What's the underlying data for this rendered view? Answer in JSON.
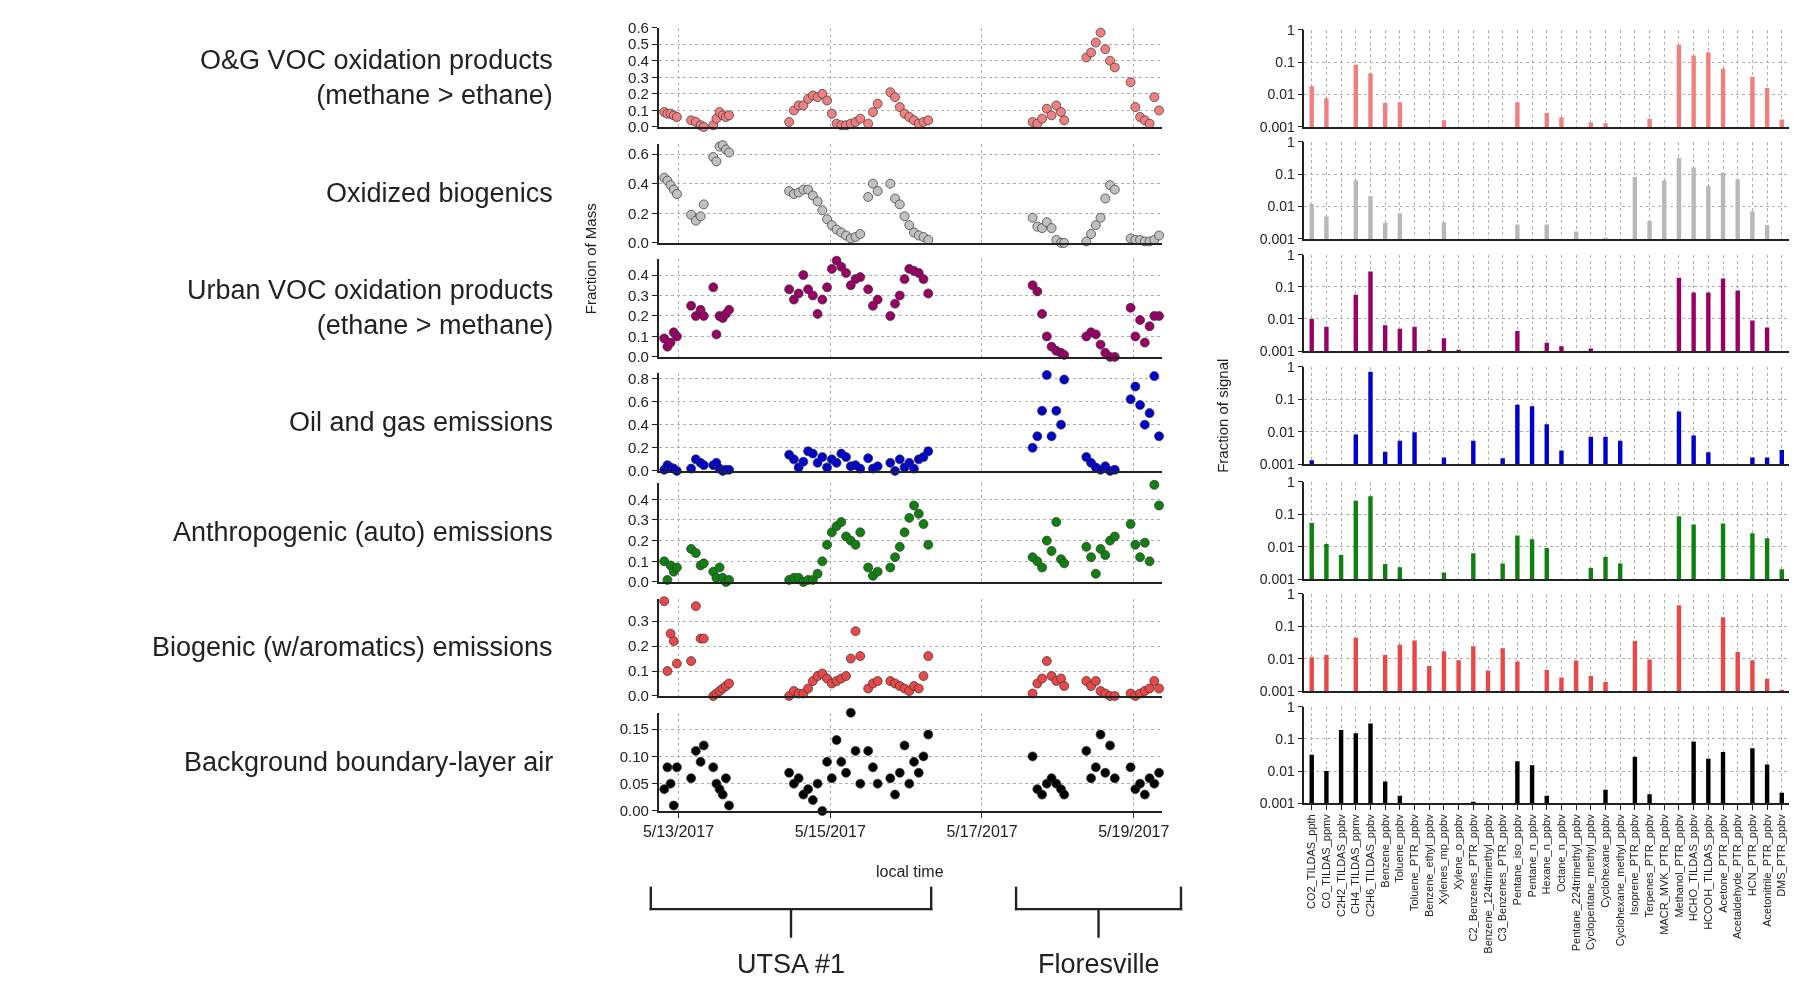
{
  "chart_data": [
    {
      "type": "scatter",
      "title": "O&G VOC oxidation products\n(methane > ethane)",
      "color": "#f08080",
      "marker": "circle",
      "grid": true,
      "tick_labels": "y",
      "x": [
        "2017-05-12T19:30",
        "2017-05-12T20:30",
        "2017-05-12T21:30",
        "2017-05-12T22:30",
        "2017-05-12T23:30",
        "2017-05-13T04:00",
        "2017-05-13T05:30",
        "2017-05-13T07:00",
        "2017-05-13T08:00",
        "2017-05-13T11:00",
        "2017-05-13T12:00",
        "2017-05-13T13:00",
        "2017-05-13T14:00",
        "2017-05-13T15:00",
        "2017-05-13T16:00",
        "2017-05-14T11:00",
        "2017-05-14T12:30",
        "2017-05-14T14:00",
        "2017-05-14T15:30",
        "2017-05-14T17:00",
        "2017-05-14T18:30",
        "2017-05-14T20:00",
        "2017-05-14T21:30",
        "2017-05-14T23:00",
        "2017-05-15T00:30",
        "2017-05-15T02:00",
        "2017-05-15T03:30",
        "2017-05-15T05:00",
        "2017-05-15T06:30",
        "2017-05-15T08:00",
        "2017-05-15T09:30",
        "2017-05-15T12:00",
        "2017-05-15T13:30",
        "2017-05-15T15:00",
        "2017-05-15T19:00",
        "2017-05-15T20:30",
        "2017-05-15T22:00",
        "2017-05-15T23:30",
        "2017-05-16T01:00",
        "2017-05-16T02:30",
        "2017-05-16T04:00",
        "2017-05-16T05:30",
        "2017-05-16T07:00",
        "2017-05-17T16:00",
        "2017-05-17T17:30",
        "2017-05-17T19:00",
        "2017-05-17T20:30",
        "2017-05-17T22:00",
        "2017-05-17T23:30",
        "2017-05-18T01:00",
        "2017-05-18T02:00",
        "2017-05-18T09:00",
        "2017-05-18T10:30",
        "2017-05-18T12:00",
        "2017-05-18T13:30",
        "2017-05-18T15:00",
        "2017-05-18T16:30",
        "2017-05-18T18:00",
        "2017-05-18T23:00",
        "2017-05-19T00:30",
        "2017-05-19T02:00",
        "2017-05-19T03:30",
        "2017-05-19T05:00",
        "2017-05-19T06:30",
        "2017-05-19T08:00"
      ],
      "values": [
        0.09,
        0.08,
        0.08,
        0.07,
        0.06,
        0.04,
        0.03,
        0.01,
        0.0,
        0.01,
        0.05,
        0.09,
        0.07,
        0.06,
        0.07,
        0.03,
        0.1,
        0.13,
        0.13,
        0.17,
        0.19,
        0.18,
        0.2,
        0.16,
        0.08,
        0.02,
        0.01,
        0.01,
        0.02,
        0.03,
        0.05,
        0.02,
        0.09,
        0.14,
        0.21,
        0.18,
        0.12,
        0.08,
        0.06,
        0.04,
        0.02,
        0.03,
        0.04,
        0.03,
        0.02,
        0.05,
        0.11,
        0.07,
        0.13,
        0.09,
        0.04,
        0.42,
        0.45,
        0.51,
        0.57,
        0.47,
        0.4,
        0.36,
        0.27,
        0.12,
        0.06,
        0.04,
        0.02,
        0.18,
        0.1
      ],
      "xlim": [
        "2017-05-12T17:45",
        "2017-05-19T09:00"
      ],
      "xticks": [
        {
          "value": "2017-05-13",
          "label": null
        },
        {
          "value": "2017-05-15",
          "label": null
        },
        {
          "value": "2017-05-17",
          "label": null
        },
        {
          "value": "2017-05-19",
          "label": null
        }
      ],
      "ylim": [
        0,
        0.6
      ],
      "yticks": [
        {
          "value": 0,
          "label": "0.0"
        },
        0.1,
        0.2,
        0.3,
        0.4,
        0.5,
        0.6
      ]
    },
    {
      "type": "scatter",
      "title": "Oxidized biogenics",
      "color": "#c0c0c0",
      "marker": "circle",
      "grid": true,
      "tick_labels": "y",
      "x": [
        "2017-05-12T19:30",
        "2017-05-12T20:30",
        "2017-05-12T21:30",
        "2017-05-12T22:30",
        "2017-05-12T23:30",
        "2017-05-13T04:00",
        "2017-05-13T05:30",
        "2017-05-13T07:00",
        "2017-05-13T08:00",
        "2017-05-13T11:00",
        "2017-05-13T12:00",
        "2017-05-13T13:00",
        "2017-05-13T14:00",
        "2017-05-13T15:00",
        "2017-05-13T16:00",
        "2017-05-14T11:00",
        "2017-05-14T12:30",
        "2017-05-14T14:00",
        "2017-05-14T15:30",
        "2017-05-14T17:00",
        "2017-05-14T18:30",
        "2017-05-14T20:00",
        "2017-05-14T21:30",
        "2017-05-14T23:00",
        "2017-05-15T00:30",
        "2017-05-15T02:00",
        "2017-05-15T03:30",
        "2017-05-15T05:00",
        "2017-05-15T06:30",
        "2017-05-15T08:00",
        "2017-05-15T09:30",
        "2017-05-15T12:00",
        "2017-05-15T13:30",
        "2017-05-15T15:00",
        "2017-05-15T19:00",
        "2017-05-15T20:30",
        "2017-05-15T22:00",
        "2017-05-15T23:30",
        "2017-05-16T01:00",
        "2017-05-16T02:30",
        "2017-05-16T04:00",
        "2017-05-16T05:30",
        "2017-05-16T07:00",
        "2017-05-17T16:00",
        "2017-05-17T17:30",
        "2017-05-17T19:00",
        "2017-05-17T20:30",
        "2017-05-17T22:00",
        "2017-05-17T23:30",
        "2017-05-18T01:00",
        "2017-05-18T02:00",
        "2017-05-18T09:00",
        "2017-05-18T10:30",
        "2017-05-18T12:00",
        "2017-05-18T13:30",
        "2017-05-18T15:00",
        "2017-05-18T16:30",
        "2017-05-18T18:00",
        "2017-05-18T23:00",
        "2017-05-19T00:30",
        "2017-05-19T02:00",
        "2017-05-19T03:30",
        "2017-05-19T05:00",
        "2017-05-19T06:30",
        "2017-05-19T08:00"
      ],
      "values": [
        0.44,
        0.42,
        0.39,
        0.36,
        0.33,
        0.19,
        0.15,
        0.18,
        0.26,
        0.58,
        0.55,
        0.65,
        0.66,
        0.63,
        0.61,
        0.35,
        0.33,
        0.34,
        0.36,
        0.36,
        0.32,
        0.28,
        0.22,
        0.16,
        0.12,
        0.09,
        0.07,
        0.05,
        0.03,
        0.04,
        0.06,
        0.31,
        0.4,
        0.35,
        0.4,
        0.3,
        0.26,
        0.18,
        0.12,
        0.07,
        0.05,
        0.04,
        0.02,
        0.17,
        0.11,
        0.1,
        0.14,
        0.1,
        0.02,
        0.0,
        0.0,
        0.01,
        0.06,
        0.12,
        0.17,
        0.3,
        0.39,
        0.36,
        0.03,
        0.02,
        0.02,
        0.01,
        0.01,
        0.02,
        0.05
      ],
      "xlim": [
        "2017-05-12T17:45",
        "2017-05-19T09:00"
      ],
      "xticks": [
        {
          "value": "2017-05-13",
          "label": null
        },
        {
          "value": "2017-05-15",
          "label": null
        },
        {
          "value": "2017-05-17",
          "label": null
        },
        {
          "value": "2017-05-19",
          "label": null
        }
      ],
      "ylim": [
        0,
        0.67
      ],
      "yticks": [
        {
          "value": 0,
          "label": "0.0"
        },
        0.2,
        0.4,
        0.6
      ]
    },
    {
      "type": "scatter",
      "title": "Urban VOC oxidation products\n(ethane > methane)",
      "ylabel": "Fraction of Mass",
      "color": "#990066",
      "marker": "circle",
      "grid": true,
      "tick_labels": "y",
      "x": [
        "2017-05-12T19:30",
        "2017-05-12T20:30",
        "2017-05-12T21:30",
        "2017-05-12T22:30",
        "2017-05-12T23:30",
        "2017-05-13T04:00",
        "2017-05-13T05:30",
        "2017-05-13T07:00",
        "2017-05-13T08:00",
        "2017-05-13T11:00",
        "2017-05-13T12:00",
        "2017-05-13T13:00",
        "2017-05-13T14:00",
        "2017-05-13T15:00",
        "2017-05-13T16:00",
        "2017-05-14T11:00",
        "2017-05-14T12:30",
        "2017-05-14T14:00",
        "2017-05-14T15:30",
        "2017-05-14T17:00",
        "2017-05-14T18:30",
        "2017-05-14T20:00",
        "2017-05-14T21:30",
        "2017-05-14T23:00",
        "2017-05-15T00:30",
        "2017-05-15T02:00",
        "2017-05-15T03:30",
        "2017-05-15T05:00",
        "2017-05-15T06:30",
        "2017-05-15T08:00",
        "2017-05-15T09:30",
        "2017-05-15T12:00",
        "2017-05-15T13:30",
        "2017-05-15T15:00",
        "2017-05-15T19:00",
        "2017-05-15T20:30",
        "2017-05-15T22:00",
        "2017-05-15T23:30",
        "2017-05-16T01:00",
        "2017-05-16T02:30",
        "2017-05-16T04:00",
        "2017-05-16T05:30",
        "2017-05-16T07:00",
        "2017-05-17T16:00",
        "2017-05-17T17:30",
        "2017-05-17T19:00",
        "2017-05-17T20:30",
        "2017-05-17T22:00",
        "2017-05-17T23:30",
        "2017-05-18T01:00",
        "2017-05-18T02:00",
        "2017-05-18T09:00",
        "2017-05-18T10:30",
        "2017-05-18T12:00",
        "2017-05-18T13:30",
        "2017-05-18T15:00",
        "2017-05-18T16:30",
        "2017-05-18T18:00",
        "2017-05-18T23:00",
        "2017-05-19T00:30",
        "2017-05-19T02:00",
        "2017-05-19T03:30",
        "2017-05-19T05:00",
        "2017-05-19T06:30",
        "2017-05-19T08:00"
      ],
      "values": [
        0.09,
        0.05,
        0.07,
        0.12,
        0.1,
        0.25,
        0.2,
        0.23,
        0.2,
        0.34,
        0.11,
        0.2,
        0.19,
        0.21,
        0.23,
        0.33,
        0.28,
        0.31,
        0.4,
        0.33,
        0.3,
        0.21,
        0.28,
        0.34,
        0.43,
        0.47,
        0.44,
        0.41,
        0.35,
        0.38,
        0.39,
        0.33,
        0.25,
        0.28,
        0.2,
        0.26,
        0.3,
        0.38,
        0.43,
        0.42,
        0.41,
        0.38,
        0.31,
        0.35,
        0.32,
        0.21,
        0.1,
        0.05,
        0.03,
        0.02,
        0.01,
        0.1,
        0.12,
        0.11,
        0.06,
        0.02,
        0.0,
        0.0,
        0.24,
        0.1,
        0.18,
        0.07,
        0.15,
        0.2,
        0.2
      ],
      "xlim": [
        "2017-05-12T17:45",
        "2017-05-19T09:00"
      ],
      "xticks": [
        {
          "value": "2017-05-13",
          "label": null
        },
        {
          "value": "2017-05-15",
          "label": null
        },
        {
          "value": "2017-05-17",
          "label": null
        },
        {
          "value": "2017-05-19",
          "label": null
        }
      ],
      "ylim": [
        0,
        0.48
      ],
      "yticks": [
        {
          "value": 0,
          "label": "0.0"
        },
        0.1,
        0.2,
        0.3,
        0.4
      ]
    },
    {
      "type": "scatter",
      "title": "Oil and gas emissions",
      "color": "#0000cc",
      "marker": "circle",
      "grid": true,
      "tick_labels": "y",
      "x": [
        "2017-05-12T19:30",
        "2017-05-12T20:30",
        "2017-05-12T21:30",
        "2017-05-12T22:30",
        "2017-05-12T23:30",
        "2017-05-13T04:00",
        "2017-05-13T05:30",
        "2017-05-13T07:00",
        "2017-05-13T08:00",
        "2017-05-13T11:00",
        "2017-05-13T12:00",
        "2017-05-13T13:00",
        "2017-05-13T14:00",
        "2017-05-13T15:00",
        "2017-05-13T16:00",
        "2017-05-14T11:00",
        "2017-05-14T12:30",
        "2017-05-14T14:00",
        "2017-05-14T15:30",
        "2017-05-14T17:00",
        "2017-05-14T18:30",
        "2017-05-14T20:00",
        "2017-05-14T21:30",
        "2017-05-14T23:00",
        "2017-05-15T00:30",
        "2017-05-15T02:00",
        "2017-05-15T03:30",
        "2017-05-15T05:00",
        "2017-05-15T06:30",
        "2017-05-15T08:00",
        "2017-05-15T09:30",
        "2017-05-15T12:00",
        "2017-05-15T13:30",
        "2017-05-15T15:00",
        "2017-05-15T19:00",
        "2017-05-15T20:30",
        "2017-05-15T22:00",
        "2017-05-15T23:30",
        "2017-05-16T01:00",
        "2017-05-16T02:30",
        "2017-05-16T04:00",
        "2017-05-16T05:30",
        "2017-05-16T07:00",
        "2017-05-17T16:00",
        "2017-05-17T17:30",
        "2017-05-17T19:00",
        "2017-05-17T20:30",
        "2017-05-17T22:00",
        "2017-05-17T23:30",
        "2017-05-18T01:00",
        "2017-05-18T02:00",
        "2017-05-18T09:00",
        "2017-05-18T10:30",
        "2017-05-18T12:00",
        "2017-05-18T13:30",
        "2017-05-18T15:00",
        "2017-05-18T16:30",
        "2017-05-18T18:00",
        "2017-05-18T23:00",
        "2017-05-19T00:30",
        "2017-05-19T02:00",
        "2017-05-19T03:30",
        "2017-05-19T05:00",
        "2017-05-19T06:30",
        "2017-05-19T08:00"
      ],
      "values": [
        0.01,
        0.05,
        0.03,
        0.02,
        0.0,
        0.02,
        0.1,
        0.07,
        0.05,
        0.05,
        0.07,
        0.02,
        0.0,
        0.01,
        0.01,
        0.14,
        0.1,
        0.03,
        0.08,
        0.17,
        0.15,
        0.07,
        0.12,
        0.03,
        0.1,
        0.07,
        0.15,
        0.12,
        0.04,
        0.05,
        0.02,
        0.11,
        0.02,
        0.04,
        0.07,
        0.0,
        0.1,
        0.03,
        0.07,
        0.02,
        0.1,
        0.12,
        0.17,
        0.2,
        0.3,
        0.52,
        0.83,
        0.3,
        0.52,
        0.4,
        0.79,
        0.12,
        0.07,
        0.03,
        0.01,
        0.04,
        0.0,
        0.01,
        0.62,
        0.73,
        0.57,
        0.4,
        0.5,
        0.82,
        0.3
      ],
      "xlim": [
        "2017-05-12T17:45",
        "2017-05-19T09:00"
      ],
      "xticks": [
        {
          "value": "2017-05-13",
          "label": null
        },
        {
          "value": "2017-05-15",
          "label": null
        },
        {
          "value": "2017-05-17",
          "label": null
        },
        {
          "value": "2017-05-19",
          "label": null
        }
      ],
      "ylim": [
        0,
        0.85
      ],
      "yticks": [
        {
          "value": 0,
          "label": "0.0"
        },
        0.2,
        0.4,
        0.6,
        0.8
      ]
    },
    {
      "type": "scatter",
      "title": "Anthropogenic (auto) emissions",
      "color": "#108010",
      "marker": "circle",
      "grid": true,
      "tick_labels": "y",
      "x": [
        "2017-05-12T19:30",
        "2017-05-12T20:30",
        "2017-05-12T21:30",
        "2017-05-12T22:30",
        "2017-05-12T23:30",
        "2017-05-13T04:00",
        "2017-05-13T05:30",
        "2017-05-13T07:00",
        "2017-05-13T08:00",
        "2017-05-13T11:00",
        "2017-05-13T12:00",
        "2017-05-13T13:00",
        "2017-05-13T14:00",
        "2017-05-13T15:00",
        "2017-05-13T16:00",
        "2017-05-14T11:00",
        "2017-05-14T12:30",
        "2017-05-14T14:00",
        "2017-05-14T15:30",
        "2017-05-14T17:00",
        "2017-05-14T18:30",
        "2017-05-14T20:00",
        "2017-05-14T21:30",
        "2017-05-14T23:00",
        "2017-05-15T00:30",
        "2017-05-15T02:00",
        "2017-05-15T03:30",
        "2017-05-15T05:00",
        "2017-05-15T06:30",
        "2017-05-15T08:00",
        "2017-05-15T09:30",
        "2017-05-15T12:00",
        "2017-05-15T13:30",
        "2017-05-15T15:00",
        "2017-05-15T19:00",
        "2017-05-15T20:30",
        "2017-05-15T22:00",
        "2017-05-15T23:30",
        "2017-05-16T01:00",
        "2017-05-16T02:30",
        "2017-05-16T04:00",
        "2017-05-16T05:30",
        "2017-05-16T07:00",
        "2017-05-17T16:00",
        "2017-05-17T17:30",
        "2017-05-17T19:00",
        "2017-05-17T20:30",
        "2017-05-17T22:00",
        "2017-05-17T23:30",
        "2017-05-18T01:00",
        "2017-05-18T02:00",
        "2017-05-18T09:00",
        "2017-05-18T10:30",
        "2017-05-18T12:00",
        "2017-05-18T13:30",
        "2017-05-18T15:00",
        "2017-05-18T16:30",
        "2017-05-18T18:00",
        "2017-05-18T23:00",
        "2017-05-19T00:30",
        "2017-05-19T02:00",
        "2017-05-19T03:30",
        "2017-05-19T05:00",
        "2017-05-19T06:30",
        "2017-05-19T08:00"
      ],
      "values": [
        0.1,
        0.01,
        0.08,
        0.05,
        0.07,
        0.16,
        0.14,
        0.08,
        0.09,
        0.05,
        0.02,
        0.07,
        0.02,
        0.0,
        0.01,
        0.01,
        0.02,
        0.02,
        0.0,
        0.01,
        0.01,
        0.04,
        0.1,
        0.18,
        0.24,
        0.27,
        0.29,
        0.22,
        0.2,
        0.18,
        0.24,
        0.07,
        0.03,
        0.05,
        0.07,
        0.12,
        0.17,
        0.24,
        0.31,
        0.37,
        0.33,
        0.28,
        0.18,
        0.12,
        0.1,
        0.07,
        0.2,
        0.15,
        0.29,
        0.11,
        0.09,
        0.17,
        0.12,
        0.04,
        0.16,
        0.13,
        0.2,
        0.22,
        0.28,
        0.18,
        0.12,
        0.19,
        0.1,
        0.47,
        0.37
      ],
      "xlim": [
        "2017-05-12T17:45",
        "2017-05-19T09:00"
      ],
      "xticks": [
        {
          "value": "2017-05-13",
          "label": null
        },
        {
          "value": "2017-05-15",
          "label": null
        },
        {
          "value": "2017-05-17",
          "label": null
        },
        {
          "value": "2017-05-19",
          "label": null
        }
      ],
      "ylim": [
        0,
        0.48
      ],
      "yticks": [
        {
          "value": 0,
          "label": "0.0"
        },
        0.1,
        0.2,
        0.3,
        0.4
      ]
    },
    {
      "type": "scatter",
      "title": "Biogenic (w/aromatics) emissions",
      "color": "#e84848",
      "marker": "circle",
      "grid": true,
      "tick_labels": "y",
      "x": [
        "2017-05-12T19:30",
        "2017-05-12T20:30",
        "2017-05-12T21:30",
        "2017-05-12T22:30",
        "2017-05-12T23:30",
        "2017-05-13T04:00",
        "2017-05-13T05:30",
        "2017-05-13T07:00",
        "2017-05-13T08:00",
        "2017-05-13T11:00",
        "2017-05-13T12:00",
        "2017-05-13T13:00",
        "2017-05-13T14:00",
        "2017-05-13T15:00",
        "2017-05-13T16:00",
        "2017-05-14T11:00",
        "2017-05-14T12:30",
        "2017-05-14T14:00",
        "2017-05-14T15:30",
        "2017-05-14T17:00",
        "2017-05-14T18:30",
        "2017-05-14T20:00",
        "2017-05-14T21:30",
        "2017-05-14T23:00",
        "2017-05-15T00:30",
        "2017-05-15T02:00",
        "2017-05-15T03:30",
        "2017-05-15T05:00",
        "2017-05-15T06:30",
        "2017-05-15T08:00",
        "2017-05-15T09:30",
        "2017-05-15T12:00",
        "2017-05-15T13:30",
        "2017-05-15T15:00",
        "2017-05-15T19:00",
        "2017-05-15T20:30",
        "2017-05-15T22:00",
        "2017-05-15T23:30",
        "2017-05-16T01:00",
        "2017-05-16T02:30",
        "2017-05-16T04:00",
        "2017-05-16T05:30",
        "2017-05-16T07:00",
        "2017-05-17T16:00",
        "2017-05-17T17:30",
        "2017-05-17T19:00",
        "2017-05-17T20:30",
        "2017-05-17T22:00",
        "2017-05-17T23:30",
        "2017-05-18T01:00",
        "2017-05-18T02:00",
        "2017-05-18T09:00",
        "2017-05-18T10:30",
        "2017-05-18T12:00",
        "2017-05-18T13:30",
        "2017-05-18T15:00",
        "2017-05-18T16:30",
        "2017-05-18T18:00",
        "2017-05-18T23:00",
        "2017-05-19T00:30",
        "2017-05-19T02:00",
        "2017-05-19T03:30",
        "2017-05-19T05:00",
        "2017-05-19T06:30",
        "2017-05-19T08:00"
      ],
      "values": [
        0.38,
        0.1,
        0.25,
        0.22,
        0.13,
        0.14,
        0.36,
        0.23,
        0.23,
        0.0,
        0.01,
        0.02,
        0.03,
        0.04,
        0.05,
        0.0,
        0.02,
        0.01,
        0.01,
        0.03,
        0.06,
        0.08,
        0.09,
        0.07,
        0.05,
        0.06,
        0.07,
        0.08,
        0.15,
        0.26,
        0.16,
        0.03,
        0.05,
        0.06,
        0.06,
        0.05,
        0.04,
        0.03,
        0.02,
        0.04,
        0.03,
        0.08,
        0.16,
        0.01,
        0.05,
        0.07,
        0.14,
        0.08,
        0.06,
        0.07,
        0.04,
        0.06,
        0.04,
        0.06,
        0.02,
        0.01,
        0.0,
        0.0,
        0.01,
        0.0,
        0.01,
        0.02,
        0.03,
        0.06,
        0.03
      ],
      "xlim": [
        "2017-05-12T17:45",
        "2017-05-19T09:00"
      ],
      "xticks": [
        {
          "value": "2017-05-13",
          "label": null
        },
        {
          "value": "2017-05-15",
          "label": null
        },
        {
          "value": "2017-05-17",
          "label": null
        },
        {
          "value": "2017-05-19",
          "label": null
        }
      ],
      "ylim": [
        0,
        0.39
      ],
      "yticks": [
        {
          "value": 0,
          "label": "0.0"
        },
        0.1,
        0.2,
        0.3
      ]
    },
    {
      "type": "scatter",
      "title": "Background boundary-layer air",
      "xlabel": "local time",
      "annotations": [
        "UTSA #1",
        "Floresville"
      ],
      "color": "#000000",
      "marker": "circle",
      "grid": true,
      "x": [
        "2017-05-12T19:30",
        "2017-05-12T20:30",
        "2017-05-12T21:30",
        "2017-05-12T22:30",
        "2017-05-12T23:30",
        "2017-05-13T04:00",
        "2017-05-13T05:30",
        "2017-05-13T07:00",
        "2017-05-13T08:00",
        "2017-05-13T11:00",
        "2017-05-13T12:00",
        "2017-05-13T13:00",
        "2017-05-13T14:00",
        "2017-05-13T15:00",
        "2017-05-13T16:00",
        "2017-05-14T11:00",
        "2017-05-14T12:30",
        "2017-05-14T14:00",
        "2017-05-14T15:30",
        "2017-05-14T17:00",
        "2017-05-14T18:30",
        "2017-05-14T20:00",
        "2017-05-14T21:30",
        "2017-05-14T23:00",
        "2017-05-15T00:30",
        "2017-05-15T02:00",
        "2017-05-15T03:30",
        "2017-05-15T05:00",
        "2017-05-15T06:30",
        "2017-05-15T08:00",
        "2017-05-15T09:30",
        "2017-05-15T12:00",
        "2017-05-15T13:30",
        "2017-05-15T15:00",
        "2017-05-15T19:00",
        "2017-05-15T20:30",
        "2017-05-15T22:00",
        "2017-05-15T23:30",
        "2017-05-16T01:00",
        "2017-05-16T02:30",
        "2017-05-16T04:00",
        "2017-05-16T05:30",
        "2017-05-16T07:00",
        "2017-05-17T16:00",
        "2017-05-17T17:30",
        "2017-05-17T19:00",
        "2017-05-17T20:30",
        "2017-05-17T22:00",
        "2017-05-17T23:30",
        "2017-05-18T01:00",
        "2017-05-18T02:00",
        "2017-05-18T09:00",
        "2017-05-18T10:30",
        "2017-05-18T12:00",
        "2017-05-18T13:30",
        "2017-05-18T15:00",
        "2017-05-18T16:30",
        "2017-05-18T18:00",
        "2017-05-18T23:00",
        "2017-05-19T00:30",
        "2017-05-19T02:00",
        "2017-05-19T03:30",
        "2017-05-19T05:00",
        "2017-05-19T06:30",
        "2017-05-19T08:00"
      ],
      "values": [
        0.04,
        0.08,
        0.05,
        0.01,
        0.08,
        0.06,
        0.11,
        0.09,
        0.12,
        0.08,
        0.05,
        0.04,
        0.03,
        0.06,
        0.01,
        0.07,
        0.05,
        0.06,
        0.03,
        0.04,
        0.02,
        0.05,
        0.0,
        0.09,
        0.06,
        0.13,
        0.09,
        0.07,
        0.18,
        0.11,
        0.05,
        0.11,
        0.08,
        0.05,
        0.06,
        0.03,
        0.07,
        0.12,
        0.05,
        0.09,
        0.07,
        0.1,
        0.14,
        0.1,
        0.04,
        0.03,
        0.05,
        0.06,
        0.05,
        0.04,
        0.03,
        0.11,
        0.06,
        0.08,
        0.14,
        0.07,
        0.12,
        0.06,
        0.08,
        0.04,
        0.05,
        0.03,
        0.06,
        0.05,
        0.07
      ],
      "xlim": [
        "2017-05-12T17:45",
        "2017-05-19T09:00"
      ],
      "xticks": [
        {
          "value": "2017-05-13",
          "label": "5/13/2017"
        },
        {
          "value": "2017-05-15",
          "label": "5/15/2017"
        },
        {
          "value": "2017-05-17",
          "label": "5/17/2017"
        },
        {
          "value": "2017-05-19",
          "label": "5/19/2017"
        }
      ],
      "ylim": [
        0,
        0.18
      ],
      "yticks": [
        {
          "value": 0,
          "label": "0.00"
        },
        {
          "value": 0.05,
          "label": "0.05"
        },
        {
          "value": 0.1,
          "label": "0.10"
        },
        {
          "value": 0.15,
          "label": "0.15"
        }
      ]
    },
    {
      "type": "bar",
      "color": "#f08080",
      "log": true,
      "grid": true,
      "tick_labels": "y",
      "ylim": [
        0.001,
        1
      ],
      "yticks": [
        0.001,
        0.01,
        0.1,
        1
      ],
      "categories": [
        null,
        null,
        null,
        null,
        null,
        null,
        null,
        null,
        null,
        null,
        null,
        null,
        null,
        null,
        null,
        null,
        null,
        null,
        null,
        null,
        null,
        null,
        null,
        null,
        null,
        null,
        null,
        null,
        null,
        null,
        null,
        null,
        null
      ],
      "values": [
        0.018,
        0.0076,
        null,
        0.083,
        0.045,
        0.0055,
        0.0058,
        null,
        null,
        0.0016,
        null,
        null,
        null,
        null,
        0.0058,
        null,
        0.0027,
        0.002,
        null,
        0.0014,
        0.0013,
        null,
        null,
        0.0018,
        null,
        0.34,
        0.16,
        0.2,
        0.062,
        null,
        0.035,
        0.016,
        0.0017
      ]
    },
    {
      "type": "bar",
      "color": "#b8b8b8",
      "log": true,
      "grid": true,
      "tick_labels": "y",
      "ylim": [
        0.001,
        1
      ],
      "yticks": [
        0.001,
        0.01,
        0.1,
        1
      ],
      "categories": [
        null,
        null,
        null,
        null,
        null,
        null,
        null,
        null,
        null,
        null,
        null,
        null,
        null,
        null,
        null,
        null,
        null,
        null,
        null,
        null,
        null,
        null,
        null,
        null,
        null,
        null,
        null,
        null,
        null,
        null,
        null,
        null,
        null
      ],
      "values": [
        0.012,
        0.0049,
        null,
        0.065,
        0.021,
        0.0031,
        0.0062,
        null,
        null,
        0.0032,
        null,
        null,
        null,
        null,
        0.0028,
        null,
        0.0028,
        null,
        0.0017,
        null,
        0.0011,
        null,
        0.081,
        0.0036,
        0.064,
        0.32,
        0.16,
        0.043,
        0.11,
        0.068,
        0.0072,
        0.0027,
        null
      ]
    },
    {
      "type": "bar",
      "color": "#990066",
      "log": true,
      "grid": true,
      "tick_labels": "y",
      "ylim": [
        0.001,
        1
      ],
      "yticks": [
        0.001,
        0.01,
        0.1,
        1
      ],
      "categories": [
        null,
        null,
        null,
        null,
        null,
        null,
        null,
        null,
        null,
        null,
        null,
        null,
        null,
        null,
        null,
        null,
        null,
        null,
        null,
        null,
        null,
        null,
        null,
        null,
        null,
        null,
        null,
        null,
        null,
        null,
        null,
        null,
        null
      ],
      "values": [
        0.01,
        0.0057,
        null,
        0.057,
        0.3,
        0.0063,
        0.0049,
        0.0057,
        0.0011,
        0.0025,
        0.0011,
        null,
        null,
        null,
        0.0042,
        null,
        0.0018,
        0.0014,
        null,
        0.0012,
        null,
        null,
        null,
        null,
        null,
        0.19,
        0.066,
        0.066,
        0.18,
        0.077,
        0.0089,
        0.0054,
        null
      ]
    },
    {
      "type": "bar",
      "color": "#0000cc",
      "log": true,
      "grid": true,
      "tick_labels": "y",
      "ylabel": "Fraction of signal",
      "ylim": [
        0.001,
        1
      ],
      "yticks": [
        0.001,
        0.01,
        0.1,
        1
      ],
      "categories": [
        null,
        null,
        null,
        null,
        null,
        null,
        null,
        null,
        null,
        null,
        null,
        null,
        null,
        null,
        null,
        null,
        null,
        null,
        null,
        null,
        null,
        null,
        null,
        null,
        null,
        null,
        null,
        null,
        null,
        null,
        null,
        null,
        null
      ],
      "values": [
        0.0013,
        null,
        null,
        0.0082,
        0.7,
        0.0024,
        0.0052,
        0.0095,
        null,
        0.0016,
        null,
        0.0052,
        null,
        0.0015,
        0.067,
        0.061,
        0.017,
        0.0026,
        null,
        0.0069,
        0.0069,
        0.0052,
        null,
        null,
        null,
        0.042,
        0.0076,
        0.0023,
        null,
        null,
        0.0016,
        0.0016,
        0.0027
      ]
    },
    {
      "type": "bar",
      "color": "#108010",
      "log": true,
      "grid": true,
      "tick_labels": "y",
      "ylim": [
        0.001,
        1
      ],
      "yticks": [
        0.001,
        0.01,
        0.1,
        1
      ],
      "categories": [
        null,
        null,
        null,
        null,
        null,
        null,
        null,
        null,
        null,
        null,
        null,
        null,
        null,
        null,
        null,
        null,
        null,
        null,
        null,
        null,
        null,
        null,
        null,
        null,
        null,
        null,
        null,
        null,
        null,
        null,
        null,
        null,
        null
      ],
      "values": [
        0.053,
        0.012,
        0.0055,
        0.26,
        0.36,
        0.0029,
        0.0023,
        null,
        null,
        0.0016,
        null,
        0.0062,
        null,
        0.003,
        0.022,
        0.017,
        0.0091,
        null,
        null,
        0.0022,
        0.0048,
        0.003,
        null,
        null,
        null,
        0.086,
        0.048,
        null,
        0.052,
        null,
        0.026,
        0.018,
        0.002
      ]
    },
    {
      "type": "bar",
      "color": "#e84848",
      "log": true,
      "grid": true,
      "tick_labels": "y",
      "ylim": [
        0.001,
        1
      ],
      "yticks": [
        0.001,
        0.01,
        0.1,
        1
      ],
      "categories": [
        null,
        null,
        null,
        null,
        null,
        null,
        null,
        null,
        null,
        null,
        null,
        null,
        null,
        null,
        null,
        null,
        null,
        null,
        null,
        null,
        null,
        null,
        null,
        null,
        null,
        null,
        null,
        null,
        null,
        null,
        null,
        null,
        null
      ],
      "values": [
        0.011,
        0.013,
        null,
        0.044,
        null,
        0.013,
        0.027,
        0.036,
        0.0059,
        0.017,
        0.009,
        0.024,
        0.0043,
        0.021,
        0.0082,
        null,
        0.0045,
        0.0026,
        0.0087,
        0.0029,
        0.0019,
        null,
        0.035,
        0.0094,
        null,
        0.44,
        null,
        null,
        0.19,
        0.016,
        0.009,
        0.0024,
        0.0011
      ]
    },
    {
      "type": "bar",
      "color": "#000000",
      "log": true,
      "grid": true,
      "ylim": [
        0.001,
        1
      ],
      "yticks": [
        0.001,
        0.01,
        0.1,
        1
      ],
      "categories": [
        "CO2_TILDAS_ppth",
        "CO_TILDAS_ppmv",
        "C2H2_TILDAS_ppbv",
        "CH4_TILDAS_ppmv",
        "C2H6_TILDAS_ppbv",
        "Benzene_ppbv",
        "Toluene_ppbv",
        "Toluene_PTR_ppbv",
        "Benzene_ethyl_ppbv",
        "Xylenes_mp_ppbv",
        "Xylene_o_ppbv",
        "C2_Benzenes_PTR_ppbv",
        "Benzene_124trimethyl_ppbv",
        "C3_Benzenes_PTR_ppbv",
        "Pentane_iso_ppbv",
        "Pentane_n_ppbv",
        "Hexane_n_ppbv",
        "Octane_n_ppbv",
        "Pentane_224trimethyl_ppbv",
        "Cyclopentane_methyl_ppbv",
        "Cyclohexane_ppbv",
        "Cyclohexane_methyl_ppbv",
        "Isoprene_PTR_ppbv",
        "Terpenes_PTR_ppbv",
        "MACR_MVK_PTR_ppbv",
        "Methanol_PTR_ppbv",
        "HCHO_TILDAS_ppbv",
        "HCOOH_TILDAS_ppbv",
        "Acetone_PTR_ppbv",
        "Acetaldehyde_PTR_ppbv",
        "HCN_PTR_ppbv",
        "Acetonitrile_PTR_ppbv",
        "DMS_PTR_ppbv"
      ],
      "values": [
        0.032,
        0.01,
        0.19,
        0.15,
        0.3,
        0.0047,
        0.0017,
        null,
        null,
        null,
        null,
        0.0011,
        null,
        null,
        0.02,
        0.015,
        0.0017,
        null,
        null,
        null,
        0.0026,
        null,
        0.028,
        0.0019,
        null,
        null,
        0.083,
        0.024,
        0.039,
        null,
        0.051,
        0.016,
        0.0021
      ]
    }
  ]
}
